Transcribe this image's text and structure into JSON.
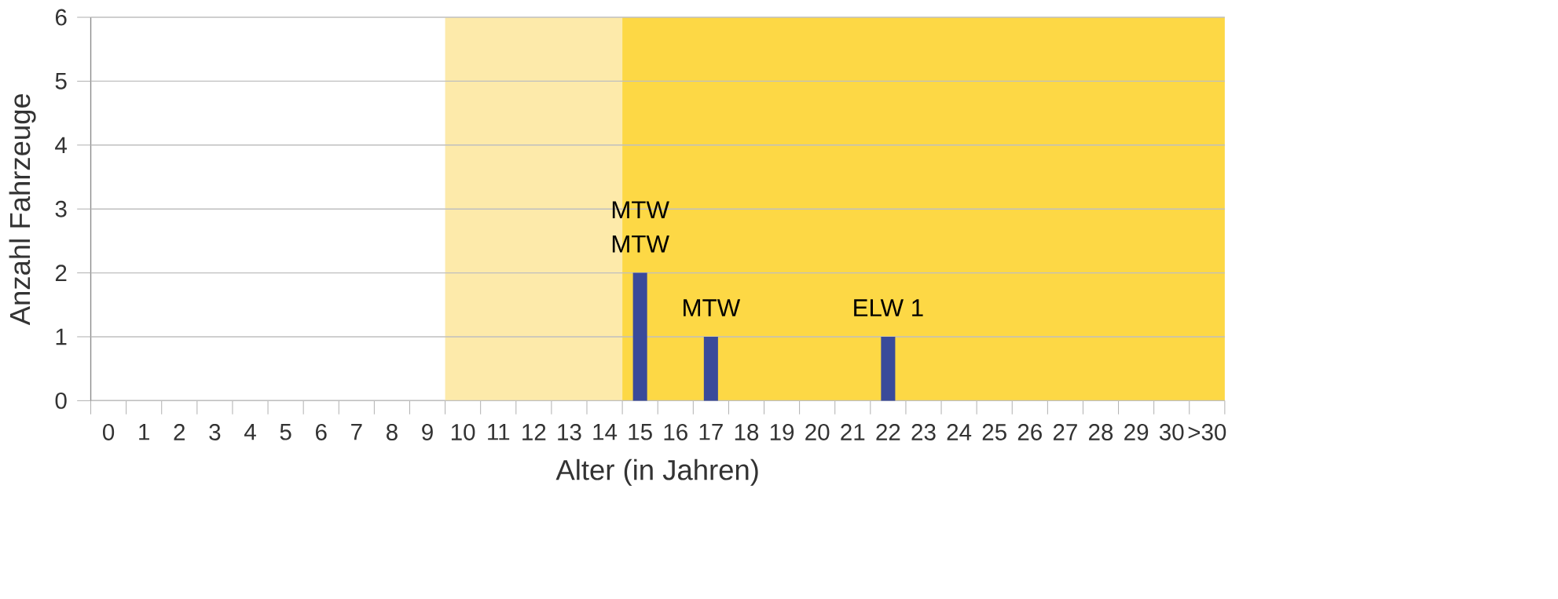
{
  "chart_data": {
    "type": "bar",
    "xlabel": "Alter (in Jahren)",
    "ylabel": "Anzahl Fahrzeuge",
    "categories": [
      "0",
      "1",
      "2",
      "3",
      "4",
      "5",
      "6",
      "7",
      "8",
      "9",
      "10",
      "11",
      "12",
      "13",
      "14",
      "15",
      "16",
      "17",
      "18",
      "19",
      "20",
      "21",
      "22",
      "23",
      "24",
      "25",
      "26",
      "27",
      "28",
      "29",
      "30",
      ">30"
    ],
    "values": [
      0,
      0,
      0,
      0,
      0,
      0,
      0,
      0,
      0,
      0,
      0,
      0,
      0,
      0,
      0,
      2,
      0,
      1,
      0,
      0,
      0,
      0,
      1,
      0,
      0,
      0,
      0,
      0,
      0,
      0,
      0,
      0
    ],
    "color": "#3a4a9a",
    "ylim": [
      0,
      6
    ],
    "yticks": [
      0,
      1,
      2,
      3,
      4,
      5,
      6
    ],
    "grid": "y",
    "bands": [
      {
        "axis": "x",
        "from": "10",
        "to": "14",
        "color": "#fdeaaa"
      },
      {
        "axis": "x",
        "from": "15",
        "to": ">30",
        "color": "#fdd845"
      }
    ],
    "annotations": [
      {
        "text": "MTW",
        "x": "15",
        "y": 2
      },
      {
        "text": "MTW",
        "x": "15",
        "y": 2
      },
      {
        "text": "MTW",
        "x": "17",
        "y": 1
      },
      {
        "text": "ELW 1",
        "x": "22",
        "y": 1
      }
    ]
  }
}
